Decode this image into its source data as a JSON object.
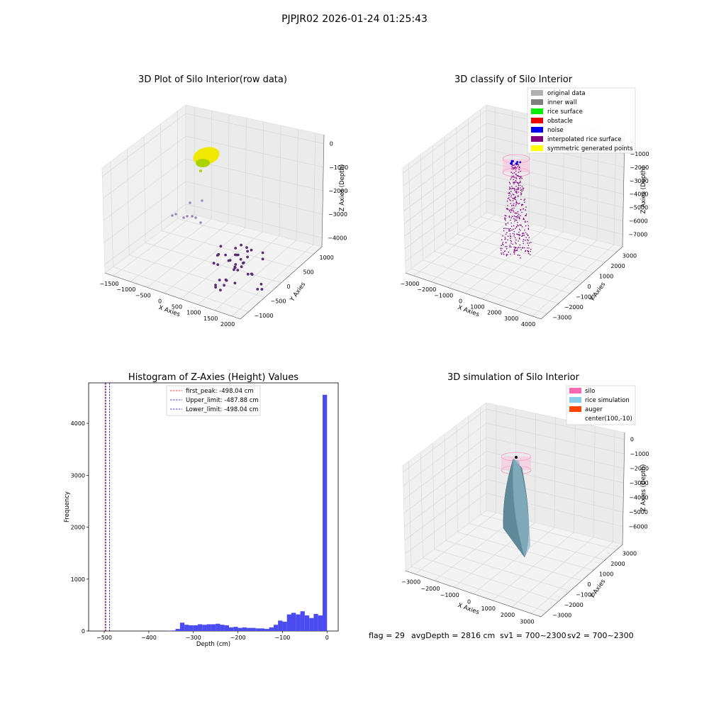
{
  "figure_title": "PJPJR02 2026-01-24 01:25:43",
  "chart_data": [
    {
      "type": "scatter",
      "title": "3D Plot of Silo Interior(row data)",
      "xlabel": "X Axies",
      "ylabel": "Y Axies",
      "zlabel": "Z Axies (Depth)",
      "x_ticks": [
        "−1500",
        "−1000",
        "−500",
        "0",
        "500",
        "1000",
        "1500",
        "2000"
      ],
      "y_ticks": [
        "−1000",
        "−500",
        "0",
        "500",
        "1000"
      ],
      "z_ticks": [
        "0",
        "−1000",
        "−2000",
        "−3000",
        "−4000"
      ],
      "grid": true,
      "colors": {
        "surface": "#f0e800",
        "surface_edge": "#a8d400",
        "points": "#5a2c74",
        "points_faint": "#9b86b6"
      }
    },
    {
      "type": "scatter",
      "title": "3D classify of Silo Interior",
      "xlabel": "X Axies",
      "ylabel": "Y Axies",
      "zlabel": "Z Axies (Depth)",
      "x_ticks": [
        "−3000",
        "−2000",
        "−1000",
        "0",
        "1000",
        "2000",
        "3000",
        "4000"
      ],
      "y_ticks": [
        "−3000",
        "−2000",
        "−1000",
        "0",
        "1000",
        "2000",
        "3000"
      ],
      "z_ticks": [
        "0",
        "−1000",
        "−2000",
        "−3000",
        "−4000",
        "−5000",
        "−6000",
        "−7000"
      ],
      "legend_position": "top-right",
      "legend": [
        {
          "label": "original data",
          "color": "#b0b0b0"
        },
        {
          "label": "inner wall",
          "color": "#808080"
        },
        {
          "label": "rice surface",
          "color": "#00ee00"
        },
        {
          "label": "obstacle",
          "color": "#ee0000"
        },
        {
          "label": "noise",
          "color": "#0000ee"
        },
        {
          "label": "interpolated rice surface",
          "color": "#800080"
        },
        {
          "label": "symmetric generated points",
          "color": "#ffff00"
        }
      ],
      "grid": true
    },
    {
      "type": "bar",
      "title": "Histogram of Z-Axies (Height) Values",
      "xlabel": "Depth (cm)",
      "ylabel": "Frequency",
      "xlim": [
        -535,
        25
      ],
      "ylim": [
        0,
        4780
      ],
      "x_ticks": [
        -500,
        -400,
        -300,
        -200,
        -100,
        0
      ],
      "x_tick_labels": [
        "−500",
        "−400",
        "−300",
        "−200",
        "−100",
        "0"
      ],
      "y_ticks": [
        0,
        1000,
        2000,
        3000,
        4000
      ],
      "bin_width": 10,
      "bins": [
        -355,
        -345,
        -335,
        -325,
        -315,
        -305,
        -295,
        -285,
        -275,
        -265,
        -255,
        -245,
        -235,
        -225,
        -215,
        -205,
        -195,
        -185,
        -175,
        -165,
        -155,
        -145,
        -135,
        -125,
        -115,
        -105,
        -95,
        -85,
        -75,
        -65,
        -55,
        -45,
        -35,
        -25,
        -15,
        -5
      ],
      "values": [
        5,
        10,
        40,
        160,
        120,
        110,
        110,
        130,
        120,
        130,
        130,
        140,
        120,
        110,
        70,
        80,
        60,
        70,
        60,
        60,
        50,
        50,
        40,
        70,
        120,
        200,
        180,
        320,
        350,
        320,
        380,
        300,
        250,
        330,
        300,
        4550
      ],
      "bar_color": "#4b4bf2",
      "reference_lines": [
        {
          "label": "first_peak: -498.04 cm",
          "x": -498.04,
          "color": "#ee0000"
        },
        {
          "label": "Upper_limit: -487.88 cm",
          "x": -487.88,
          "color": "#0000cc"
        },
        {
          "label": "Lower_limit: -498.04 cm",
          "x": -498.04,
          "color": "#0000cc"
        }
      ],
      "legend_position": "top-center",
      "grid": false
    },
    {
      "type": "area",
      "title": "3D simulation of Silo Interior",
      "xlabel": "X Axies",
      "ylabel": "Y Axies",
      "zlabel": "Z Axies (Depth)",
      "x_ticks": [
        "−3000",
        "−2000",
        "−1000",
        "0",
        "1000",
        "2000",
        "3000"
      ],
      "y_ticks": [
        "−3000",
        "−2000",
        "−1000",
        "0",
        "1000",
        "2000",
        "3000"
      ],
      "z_ticks": [
        "0",
        "−1000",
        "−2000",
        "−3000",
        "−4000",
        "−5000",
        "−6000"
      ],
      "legend_position": "top-right",
      "legend": [
        {
          "label": "silo",
          "color": "#ff69b4"
        },
        {
          "label": "rice simulation",
          "color": "#87ceeb"
        },
        {
          "label": "auger",
          "color": "#ff4500"
        },
        {
          "label": "center(100,-10)",
          "color": ""
        }
      ],
      "grid": true
    }
  ],
  "status_line": {
    "flag": "flag = 29",
    "avg_depth": "avgDepth = 2816 cm",
    "sv1": "sv1 = 700~2300",
    "sv2": "sv2 = 700~2300"
  }
}
